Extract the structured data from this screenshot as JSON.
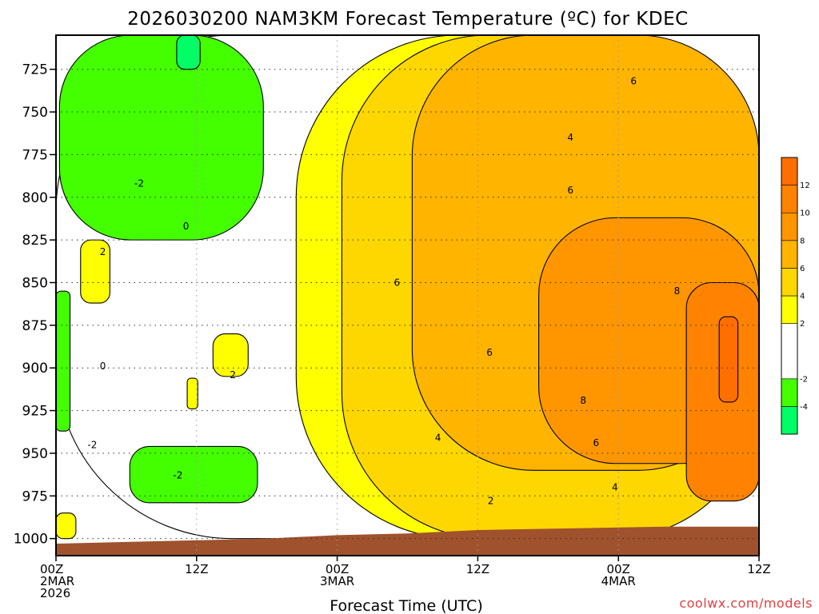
{
  "chart_data": {
    "type": "heatmap",
    "title": "2026030200 NAM3KM Forecast Temperature (ºC) for KDEC",
    "xlabel": "Forecast Time (UTC)",
    "ylabel": "",
    "x_ticks": [
      {
        "hour": 0,
        "lines": [
          "00Z",
          "2MAR",
          "2026"
        ]
      },
      {
        "hour": 12,
        "lines": [
          "12Z"
        ]
      },
      {
        "hour": 24,
        "lines": [
          "00Z",
          "3MAR"
        ]
      },
      {
        "hour": 36,
        "lines": [
          "12Z"
        ]
      },
      {
        "hour": 48,
        "lines": [
          "00Z",
          "4MAR"
        ]
      },
      {
        "hour": 60,
        "lines": [
          "12Z"
        ]
      }
    ],
    "xlim": [
      0,
      60
    ],
    "y_ticks": [
      725,
      750,
      775,
      800,
      825,
      850,
      875,
      900,
      925,
      950,
      975,
      1000
    ],
    "ylim": [
      705,
      1010
    ],
    "y_unit": "hPa",
    "grid": true,
    "colorbar": {
      "bins": [
        {
          "from": -6,
          "to": -4,
          "color": "#00ff66"
        },
        {
          "from": -4,
          "to": -2,
          "color": "#44ff00"
        },
        {
          "from": -2,
          "to": 2,
          "color": "#ffffff"
        },
        {
          "from": 2,
          "to": 4,
          "color": "#ffff00"
        },
        {
          "from": 4,
          "to": 6,
          "color": "#ffd700"
        },
        {
          "from": 6,
          "to": 8,
          "color": "#ffb400"
        },
        {
          "from": 8,
          "to": 10,
          "color": "#ff9600"
        },
        {
          "from": 10,
          "to": 12,
          "color": "#ff8200"
        },
        {
          "from": 12,
          "to": 14,
          "color": "#ff6e00"
        }
      ],
      "labels": [
        "-4",
        "-2",
        "2",
        "4",
        "6",
        "8",
        "10",
        "12"
      ]
    },
    "temperature_regions": [
      {
        "band": "-2 to 2",
        "color": "#ffffff",
        "hours": [
          0,
          60
        ],
        "pressure": [
          705,
          1000
        ]
      },
      {
        "band": "-4 to -2",
        "color": "#44ff00",
        "hours": [
          0.3,
          17.7
        ],
        "pressure": [
          705,
          825
        ]
      },
      {
        "band": "-6 to -4",
        "color": "#00ff66",
        "hours": [
          10.3,
          12.3
        ],
        "pressure": [
          705,
          725
        ]
      },
      {
        "band": "-4 to -2",
        "color": "#44ff00",
        "hours": [
          0,
          1.2
        ],
        "pressure": [
          855,
          937
        ]
      },
      {
        "band": "-4 to -2",
        "color": "#44ff00",
        "hours": [
          6.3,
          17.2
        ],
        "pressure": [
          946,
          979
        ]
      },
      {
        "band": "2 to 4",
        "color": "#ffff00",
        "hours": [
          20.5,
          60
        ],
        "pressure": [
          705,
          1000
        ]
      },
      {
        "band": "2 to 4",
        "color": "#ffff00",
        "hours": [
          2.1,
          4.6
        ],
        "pressure": [
          825,
          862
        ]
      },
      {
        "band": "2 to 4",
        "color": "#ffff00",
        "hours": [
          13.4,
          16.4
        ],
        "pressure": [
          880,
          905
        ]
      },
      {
        "band": "2 to 4",
        "color": "#ffff00",
        "hours": [
          11.2,
          12.1
        ],
        "pressure": [
          906,
          924
        ]
      },
      {
        "band": "2 to 4",
        "color": "#ffff00",
        "hours": [
          0,
          1.7
        ],
        "pressure": [
          985,
          1000
        ]
      },
      {
        "band": "4 to 6",
        "color": "#ffd700",
        "hours": [
          24.4,
          60
        ],
        "pressure": [
          705,
          1000
        ]
      },
      {
        "band": "6 to 8",
        "color": "#ffb400",
        "hours": [
          30.4,
          60
        ],
        "pressure": [
          705,
          960
        ]
      },
      {
        "band": "8 to 10",
        "color": "#ff9600",
        "hours": [
          41.2,
          60
        ],
        "pressure": [
          812,
          956
        ]
      },
      {
        "band": "10 to 12",
        "color": "#ff8200",
        "hours": [
          53.8,
          60
        ],
        "pressure": [
          850,
          978
        ]
      },
      {
        "band": "12 to 14",
        "color": "#ff6e00",
        "hours": [
          56.6,
          58.2
        ],
        "pressure": [
          870,
          920
        ]
      }
    ],
    "contour_labels": [
      {
        "text": "-2",
        "hour": 7.1,
        "pressure": 792
      },
      {
        "text": "0",
        "hour": 11.1,
        "pressure": 817
      },
      {
        "text": "2",
        "hour": 4.0,
        "pressure": 832
      },
      {
        "text": "0",
        "hour": 4.0,
        "pressure": 899
      },
      {
        "text": "2",
        "hour": 15.1,
        "pressure": 904
      },
      {
        "text": "-2",
        "hour": 3.1,
        "pressure": 945
      },
      {
        "text": "-2",
        "hour": 10.4,
        "pressure": 963
      },
      {
        "text": "6",
        "hour": 29.1,
        "pressure": 850
      },
      {
        "text": "4",
        "hour": 32.6,
        "pressure": 941
      },
      {
        "text": "6",
        "hour": 37.0,
        "pressure": 891
      },
      {
        "text": "2",
        "hour": 37.1,
        "pressure": 978
      },
      {
        "text": "4",
        "hour": 43.9,
        "pressure": 765
      },
      {
        "text": "6",
        "hour": 43.9,
        "pressure": 796
      },
      {
        "text": "6",
        "hour": 49.3,
        "pressure": 732
      },
      {
        "text": "8",
        "hour": 53.0,
        "pressure": 855
      },
      {
        "text": "8",
        "hour": 45.0,
        "pressure": 919
      },
      {
        "text": "6",
        "hour": 46.1,
        "pressure": 944
      },
      {
        "text": "4",
        "hour": 47.7,
        "pressure": 970
      }
    ],
    "terrain_color": "#a0522d",
    "surface_pressure": [
      {
        "hour": 0,
        "pressure": 1003
      },
      {
        "hour": 12,
        "pressure": 1001
      },
      {
        "hour": 18,
        "pressure": 1000
      },
      {
        "hour": 24,
        "pressure": 998
      },
      {
        "hour": 30,
        "pressure": 997
      },
      {
        "hour": 36,
        "pressure": 995
      },
      {
        "hour": 44,
        "pressure": 994
      },
      {
        "hour": 52,
        "pressure": 993
      },
      {
        "hour": 60,
        "pressure": 993
      }
    ]
  },
  "credit": "coolwx.com/models"
}
